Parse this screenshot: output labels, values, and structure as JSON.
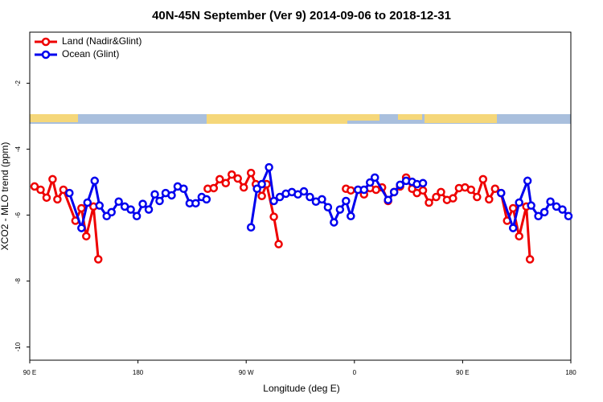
{
  "chart_data": {
    "type": "line",
    "title": "40N-45N September (Ver 9)   2014-09-06 to 2018-12-31",
    "x_label": "Longitude (deg E)",
    "y_label": "XCO2 - MLO trend (ppm)",
    "xlim": [
      90,
      540
    ],
    "xticks": [
      {
        "value": 90,
        "label": "90 E"
      },
      180,
      {
        "value": 270,
        "label": "90 W"
      },
      {
        "value": 360,
        "label": "0"
      },
      {
        "value": 450,
        "label": "90 E"
      },
      {
        "value": 540,
        "label": "180"
      }
    ],
    "ylim": [
      -10.4,
      -0.45
    ],
    "yticks": [
      -10,
      -8,
      -6,
      -4,
      -2
    ],
    "legend": "top-left",
    "series": [
      {
        "name": "Land (Nadir&Glint)",
        "color": "#ee0000",
        "x": [
          94,
          99,
          104,
          109,
          113,
          118,
          128,
          133,
          137,
          143,
          147,
          null,
          238,
          243,
          248,
          253,
          258,
          263,
          268,
          274,
          278,
          283,
          287,
          293,
          297,
          null,
          353,
          357,
          363,
          368,
          373,
          378,
          383,
          388,
          393,
          398,
          403,
          408,
          412,
          417,
          422,
          428,
          432,
          437,
          442,
          447,
          452,
          457,
          462,
          467,
          472,
          477,
          482,
          487,
          492,
          497,
          503,
          506
        ],
        "values": [
          -5.13,
          -5.23,
          -5.47,
          -4.91,
          -5.52,
          -5.23,
          -6.17,
          -5.79,
          -6.64,
          -5.74,
          -7.34,
          null,
          -5.2,
          -5.18,
          -4.91,
          -5.03,
          -4.77,
          -4.89,
          -5.16,
          -4.72,
          -5.06,
          -5.42,
          -5.06,
          -6.05,
          -6.88,
          null,
          -5.2,
          -5.25,
          -5.23,
          -5.37,
          -5.18,
          -5.23,
          -5.16,
          -5.57,
          -5.3,
          -5.13,
          -4.86,
          -5.2,
          -5.33,
          -5.25,
          -5.62,
          -5.45,
          -5.3,
          -5.54,
          -5.49,
          -5.18,
          -5.16,
          -5.23,
          -5.45,
          -4.91,
          -5.52,
          -5.2,
          -5.33,
          -6.17,
          -5.79,
          -6.64,
          -5.74,
          -7.34
        ]
      },
      {
        "name": "Ocean (Glint)",
        "color": "#0000ee",
        "x": [
          123,
          133,
          138,
          144,
          148,
          154,
          158,
          164,
          169,
          174,
          179,
          184,
          189,
          194,
          198,
          203,
          208,
          213,
          218,
          223,
          228,
          233,
          237,
          null,
          274,
          279,
          283,
          289,
          293,
          298,
          303,
          308,
          313,
          318,
          323,
          328,
          333,
          338,
          343,
          348,
          353,
          357,
          363,
          368,
          373,
          377,
          388,
          393,
          398,
          403,
          408,
          412,
          417,
          null,
          482,
          492,
          497,
          504,
          507,
          513,
          518,
          523,
          528,
          533,
          538
        ],
        "values": [
          -5.33,
          -6.39,
          -5.62,
          -4.96,
          -5.71,
          -6.03,
          -5.91,
          -5.59,
          -5.74,
          -5.83,
          -6.03,
          -5.66,
          -5.83,
          -5.37,
          -5.57,
          -5.33,
          -5.4,
          -5.13,
          -5.2,
          -5.64,
          -5.64,
          -5.45,
          -5.52,
          null,
          -6.37,
          -5.2,
          -5.06,
          -4.55,
          -5.57,
          -5.45,
          -5.35,
          -5.3,
          -5.37,
          -5.28,
          -5.45,
          -5.59,
          -5.52,
          -5.76,
          -6.22,
          -5.83,
          -5.57,
          -6.03,
          -5.23,
          -5.23,
          -5.01,
          -4.86,
          -5.54,
          -5.3,
          -5.08,
          -4.96,
          -4.99,
          -5.06,
          -5.03,
          null,
          -5.33,
          -6.39,
          -5.62,
          -4.96,
          -5.71,
          -6.03,
          -5.91,
          -5.59,
          -5.74,
          -5.83,
          -6.03
        ]
      }
    ]
  }
}
